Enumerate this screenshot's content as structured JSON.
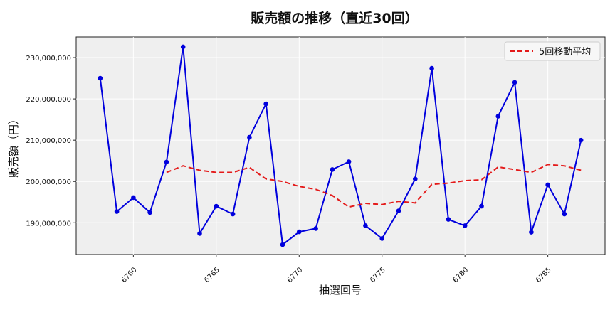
{
  "chart_data": {
    "type": "line",
    "title": "販売額の推移（直近30回）",
    "xlabel": "抽選回号",
    "ylabel": "販売額（円）",
    "x": [
      6758,
      6759,
      6760,
      6761,
      6762,
      6763,
      6764,
      6765,
      6766,
      6767,
      6768,
      6769,
      6770,
      6771,
      6772,
      6773,
      6774,
      6775,
      6776,
      6777,
      6778,
      6779,
      6780,
      6781,
      6782,
      6783,
      6784,
      6785,
      6786,
      6787
    ],
    "series": [
      {
        "name": "",
        "color": "#0000dd",
        "style": "solid",
        "markers": true,
        "values": [
          225000000,
          192700000,
          196100000,
          192500000,
          204700000,
          232600000,
          187400000,
          194000000,
          192100000,
          210700000,
          218800000,
          184700000,
          187800000,
          188600000,
          202900000,
          204800000,
          189300000,
          186200000,
          192900000,
          200600000,
          227400000,
          190800000,
          189300000,
          194000000,
          215800000,
          224000000,
          187700000,
          199200000,
          192100000,
          210000000
        ]
      },
      {
        "name": "5回移動平均",
        "color": "#e41a1a",
        "style": "dashed",
        "markers": false,
        "values": [
          null,
          null,
          null,
          null,
          202200000,
          203800000,
          202700000,
          202200000,
          202200000,
          203400000,
          200600000,
          200000000,
          198800000,
          198100000,
          196600000,
          193800000,
          194700000,
          194400000,
          195200000,
          194800000,
          199300000,
          199600000,
          200200000,
          200400000,
          203500000,
          202900000,
          202200000,
          204100000,
          203800000,
          202700000
        ]
      }
    ],
    "xticks": [
      6760,
      6765,
      6770,
      6775,
      6780,
      6785
    ],
    "xtick_labels": [
      "6760",
      "6765",
      "6770",
      "6775",
      "6780",
      "6785"
    ],
    "yticks": [
      190000000,
      200000000,
      210000000,
      220000000,
      230000000
    ],
    "ytick_labels": [
      "190,000,000",
      "200,000,000",
      "210,000,000",
      "220,000,000",
      "230,000,000"
    ],
    "xlim": [
      6756.55,
      6788.45
    ],
    "ylim": [
      182300000,
      235000000
    ],
    "grid": true,
    "legend_position": "top-right",
    "background": "#efefef"
  }
}
